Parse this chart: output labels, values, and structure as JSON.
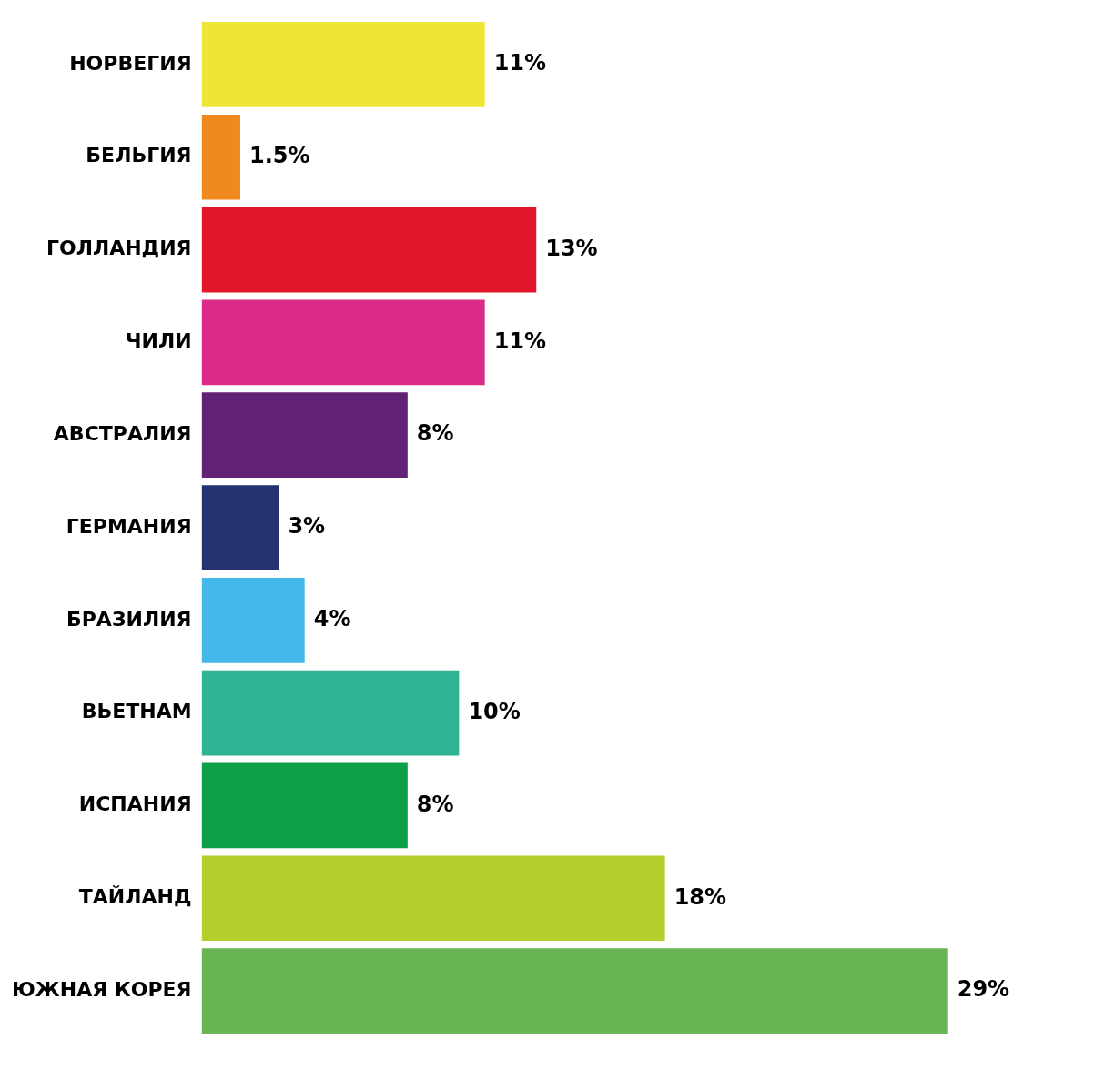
{
  "chart_data": {
    "type": "bar",
    "orientation": "horizontal",
    "categories": [
      "НОРВЕГИЯ",
      "БЕЛЬГИЯ",
      "ГОЛЛАНДИЯ",
      "ЧИЛИ",
      "АВСТРАЛИЯ",
      "ГЕРМАНИЯ",
      "БРАЗИЛИЯ",
      "ВЬЕТНАМ",
      "ИСПАНИЯ",
      "ТАЙЛАНД",
      "ЮЖНАЯ КОРЕЯ"
    ],
    "values": [
      11,
      1.5,
      13,
      11,
      8,
      3,
      4,
      10,
      8,
      18,
      29
    ],
    "value_labels": [
      "11%",
      "1.5%",
      "13%",
      "11%",
      "8%",
      "3%",
      "4%",
      "10%",
      "8%",
      "18%",
      "29%"
    ],
    "colors": [
      "#efe535",
      "#f18a1c",
      "#e1162b",
      "#db2a88",
      "#612174",
      "#263171",
      "#45b8ea",
      "#30b394",
      "#0d9f46",
      "#b6cd2e",
      "#69b556"
    ]
  }
}
